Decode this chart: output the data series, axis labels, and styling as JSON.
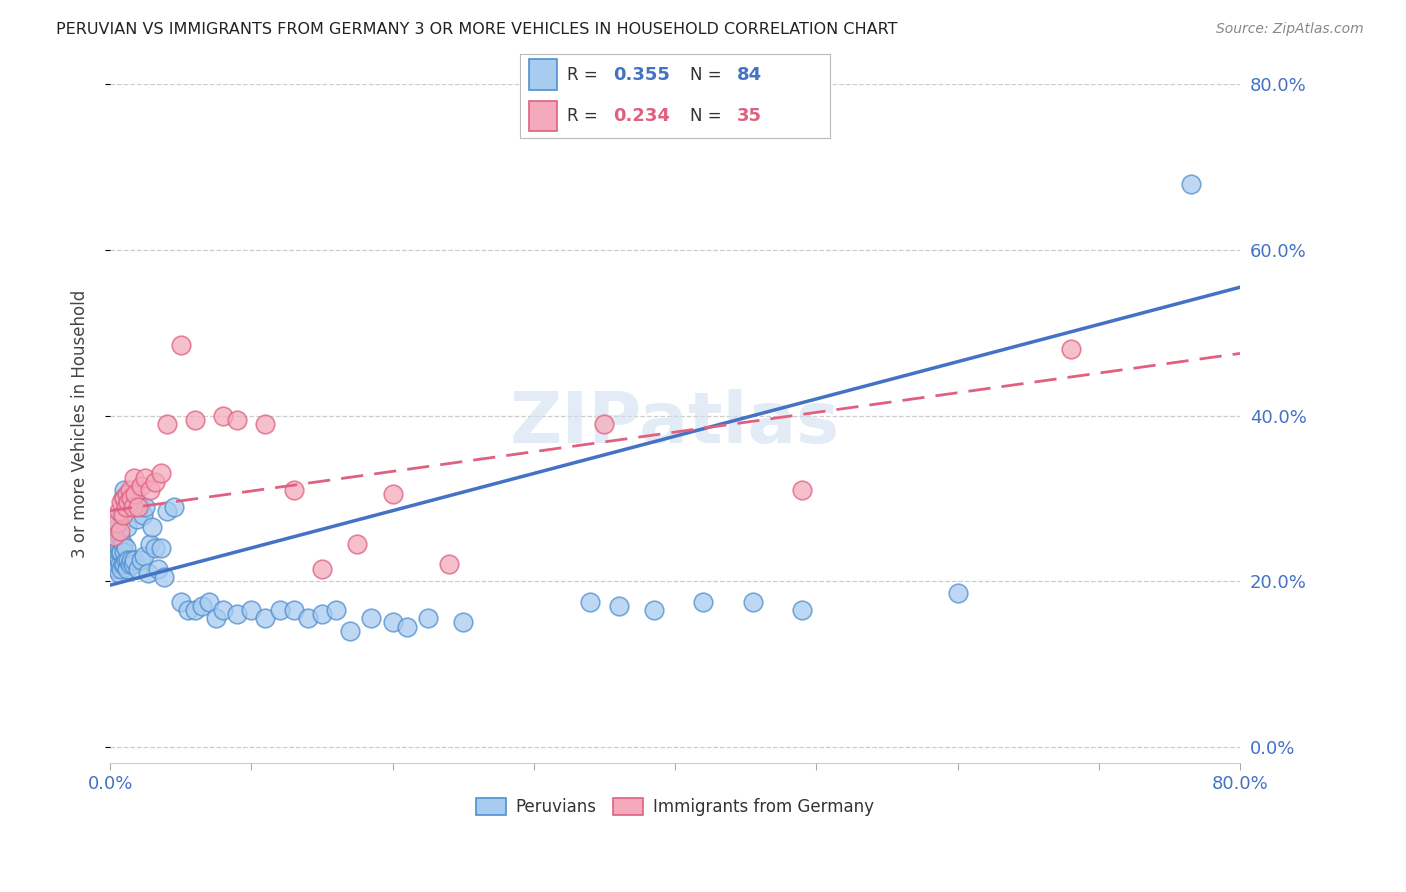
{
  "title": "PERUVIAN VS IMMIGRANTS FROM GERMANY 3 OR MORE VEHICLES IN HOUSEHOLD CORRELATION CHART",
  "source": "Source: ZipAtlas.com",
  "ylabel": "3 or more Vehicles in Household",
  "xmin": 0.0,
  "xmax": 0.8,
  "ymin": -0.02,
  "ymax": 0.8,
  "peruvian_R": 0.355,
  "peruvian_N": 84,
  "germany_R": 0.234,
  "germany_N": 35,
  "legend_label_1": "Peruvians",
  "legend_label_2": "Immigrants from Germany",
  "color_peruvian_fill": "#A8CCF0",
  "color_peruvian_edge": "#5090D0",
  "color_germany_fill": "#F4AABC",
  "color_germany_edge": "#E06080",
  "color_peruvian_line": "#4472C4",
  "color_germany_line": "#E06080",
  "color_tick_label": "#4472C4",
  "background_color": "#FFFFFF",
  "peruvian_x": [
    0.002,
    0.003,
    0.003,
    0.004,
    0.004,
    0.004,
    0.005,
    0.005,
    0.005,
    0.005,
    0.006,
    0.006,
    0.006,
    0.007,
    0.007,
    0.007,
    0.008,
    0.008,
    0.008,
    0.009,
    0.009,
    0.009,
    0.01,
    0.01,
    0.01,
    0.011,
    0.011,
    0.012,
    0.012,
    0.013,
    0.013,
    0.014,
    0.014,
    0.015,
    0.015,
    0.016,
    0.016,
    0.017,
    0.018,
    0.019,
    0.02,
    0.021,
    0.022,
    0.023,
    0.024,
    0.025,
    0.027,
    0.028,
    0.03,
    0.032,
    0.034,
    0.036,
    0.038,
    0.04,
    0.045,
    0.05,
    0.055,
    0.06,
    0.065,
    0.07,
    0.075,
    0.08,
    0.09,
    0.1,
    0.11,
    0.12,
    0.13,
    0.14,
    0.15,
    0.16,
    0.17,
    0.185,
    0.2,
    0.21,
    0.225,
    0.25,
    0.34,
    0.36,
    0.385,
    0.42,
    0.455,
    0.49,
    0.6,
    0.765
  ],
  "peruvian_y": [
    0.23,
    0.245,
    0.255,
    0.22,
    0.24,
    0.26,
    0.215,
    0.23,
    0.25,
    0.265,
    0.21,
    0.225,
    0.24,
    0.22,
    0.235,
    0.255,
    0.215,
    0.235,
    0.28,
    0.22,
    0.245,
    0.3,
    0.22,
    0.235,
    0.31,
    0.225,
    0.24,
    0.215,
    0.265,
    0.225,
    0.295,
    0.22,
    0.305,
    0.225,
    0.295,
    0.22,
    0.295,
    0.225,
    0.29,
    0.275,
    0.215,
    0.29,
    0.225,
    0.28,
    0.23,
    0.29,
    0.21,
    0.245,
    0.265,
    0.24,
    0.215,
    0.24,
    0.205,
    0.285,
    0.29,
    0.175,
    0.165,
    0.165,
    0.17,
    0.175,
    0.155,
    0.165,
    0.16,
    0.165,
    0.155,
    0.165,
    0.165,
    0.155,
    0.16,
    0.165,
    0.14,
    0.155,
    0.15,
    0.145,
    0.155,
    0.15,
    0.175,
    0.17,
    0.165,
    0.175,
    0.175,
    0.165,
    0.185,
    0.68
  ],
  "germany_x": [
    0.003,
    0.005,
    0.006,
    0.007,
    0.008,
    0.009,
    0.01,
    0.011,
    0.012,
    0.013,
    0.014,
    0.015,
    0.016,
    0.017,
    0.018,
    0.02,
    0.022,
    0.025,
    0.028,
    0.032,
    0.036,
    0.04,
    0.05,
    0.06,
    0.08,
    0.09,
    0.11,
    0.13,
    0.15,
    0.175,
    0.2,
    0.24,
    0.35,
    0.49,
    0.68
  ],
  "germany_y": [
    0.255,
    0.27,
    0.285,
    0.26,
    0.295,
    0.28,
    0.3,
    0.29,
    0.305,
    0.295,
    0.31,
    0.3,
    0.29,
    0.325,
    0.305,
    0.29,
    0.315,
    0.325,
    0.31,
    0.32,
    0.33,
    0.39,
    0.485,
    0.395,
    0.4,
    0.395,
    0.39,
    0.31,
    0.215,
    0.245,
    0.305,
    0.22,
    0.39,
    0.31,
    0.48
  ]
}
